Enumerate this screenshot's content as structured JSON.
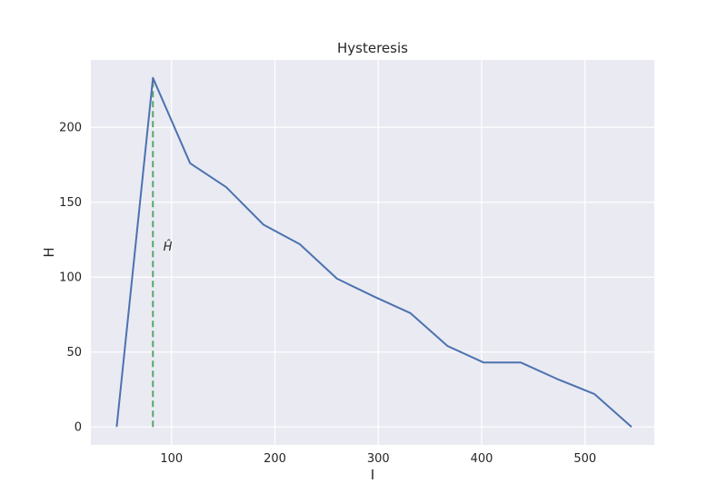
{
  "chart_data": {
    "type": "line",
    "title": "Hysteresis",
    "xlabel": "I",
    "ylabel": "H",
    "xlim": [
      22,
      567
    ],
    "ylim": [
      -12,
      245
    ],
    "xticks": [
      100,
      200,
      300,
      400,
      500
    ],
    "yticks": [
      0,
      50,
      100,
      150,
      200
    ],
    "grid": true,
    "colors": {
      "background": "#eaeaf2",
      "grid": "#ffffff",
      "series": "#4c72b0",
      "marker_line": "#55a868"
    },
    "series": [
      {
        "x": [
          47,
          82,
          118,
          153,
          189,
          224,
          260,
          296,
          331,
          367,
          402,
          438,
          473,
          509,
          545
        ],
        "y": [
          0,
          233,
          176,
          160,
          135,
          122,
          99,
          87,
          76,
          54,
          43,
          43,
          32,
          22,
          0
        ]
      }
    ],
    "vline": {
      "x": 82,
      "y0": 0,
      "y1": 233,
      "style": "dashed"
    },
    "annotation": {
      "text": "Ĥ",
      "x": 92,
      "y": 120
    }
  }
}
